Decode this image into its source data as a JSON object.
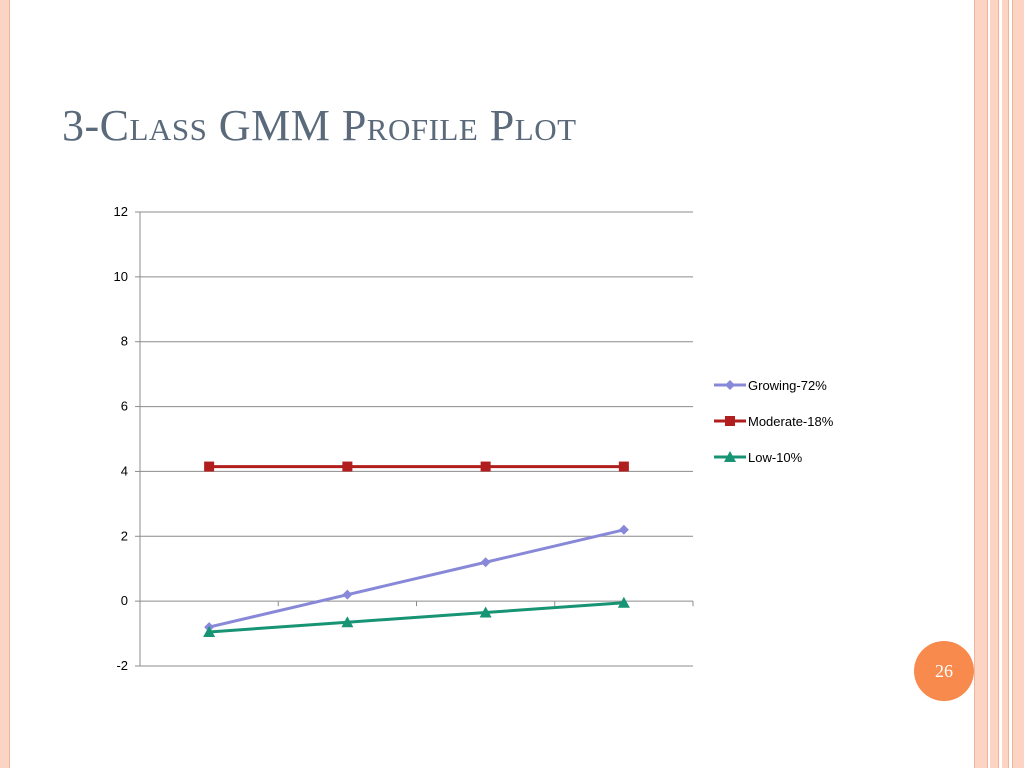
{
  "slide": {
    "title": "3-Class GMM Profile Plot",
    "page_number": "26"
  },
  "colors": {
    "frame": "#fbd4c4",
    "frame_line": "#f0b49c",
    "badge": "#f98a4e",
    "title": "#5a6a7a"
  },
  "chart_data": {
    "type": "line",
    "x": [
      1,
      2,
      3,
      4
    ],
    "ylim": [
      -2,
      12
    ],
    "yticks": [
      -2,
      0,
      2,
      4,
      6,
      8,
      10,
      12
    ],
    "grid": true,
    "legend_position": "right",
    "title": "",
    "xlabel": "",
    "ylabel": "",
    "series": [
      {
        "name": "Growing-72%",
        "values": [
          -0.8,
          0.2,
          1.2,
          2.2
        ],
        "color": "#8888d8",
        "marker": "diamond"
      },
      {
        "name": "Moderate-18%",
        "values": [
          4.15,
          4.15,
          4.15,
          4.15
        ],
        "color": "#b01e1e",
        "marker": "square"
      },
      {
        "name": "Low-10%",
        "values": [
          -0.95,
          -0.65,
          -0.35,
          -0.05
        ],
        "color": "#179474",
        "marker": "triangle"
      }
    ]
  }
}
